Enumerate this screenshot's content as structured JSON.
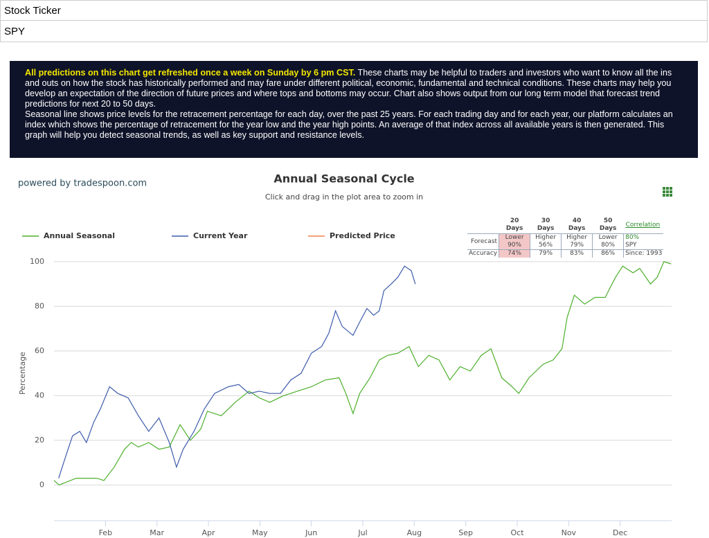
{
  "form": {
    "ticker_label": "Stock Ticker",
    "ticker_value": "SPY"
  },
  "banner": {
    "highlight": "All predictions on this chart get refreshed once a week on Sunday by 6 pm CST.",
    "text": " These charts may be helpful to traders and investors who want to know all the ins and outs on how the stock has historically performed and may fare under different political, economic, fundamental and technical conditions. These charts may help you develop an expectation of the direction of future prices and where tops and bottoms may occur. Chart also shows output from our long term model that forecast trend predictions for next 20 to 50 days.",
    "text2": "Seasonal line shows price levels for the retracement percentage for each day, over the past 25 years. For each trading day and for each year, our platform calculates an index which shows the percentage of retracement for the year low and the year high points. An average of that index across all available years is then generated. This graph will help you detect seasonal trends, as well as key support and resistance levels."
  },
  "powered_by": "powered by tradespoon.com",
  "forecast_table": {
    "headers": [
      "20 Days",
      "30 Days",
      "40 Days",
      "50 Days"
    ],
    "forecast_label": "Forecast",
    "forecast": [
      {
        "direction": "Lower",
        "percent": "90%"
      },
      {
        "direction": "Higher",
        "percent": "56%"
      },
      {
        "direction": "Higher",
        "percent": "79%"
      },
      {
        "direction": "Lower",
        "percent": "80%"
      }
    ],
    "accuracy_label": "Accuracy",
    "accuracy": [
      "74%",
      "79%",
      "83%",
      "86%"
    ],
    "correlation_label": "Correlation",
    "correlation": "80%",
    "symbol": "SPY",
    "since": "Since: 1993"
  },
  "chart_data": {
    "type": "line",
    "title": "Annual Seasonal Cycle",
    "subtitle": "Click and drag in the plot area to zoom in",
    "y_label": "Percentage",
    "xlim": [
      0,
      12
    ],
    "xticks": [
      {
        "value": 1,
        "label": "Feb"
      },
      {
        "value": 2,
        "label": "Mar"
      },
      {
        "value": 3,
        "label": "Apr"
      },
      {
        "value": 4,
        "label": "May"
      },
      {
        "value": 5,
        "label": "Jun"
      },
      {
        "value": 6,
        "label": "Jul"
      },
      {
        "value": 7,
        "label": "Aug"
      },
      {
        "value": 8,
        "label": "Sep"
      },
      {
        "value": 9,
        "label": "Oct"
      },
      {
        "value": 10,
        "label": "Nov"
      },
      {
        "value": 11,
        "label": "Dec"
      }
    ],
    "ylim": [
      -16,
      104
    ],
    "yticks": [
      0,
      20,
      40,
      60,
      80,
      100
    ],
    "grid": true,
    "series": [
      {
        "name": "Annual Seasonal",
        "color": "#4caf2a",
        "x": [
          0,
          0.1,
          0.43,
          0.83,
          0.97,
          1.17,
          1.37,
          1.5,
          1.64,
          1.84,
          2.04,
          2.24,
          2.45,
          2.65,
          2.85,
          2.98,
          3.25,
          3.52,
          3.79,
          3.99,
          4.19,
          4.46,
          4.73,
          5.0,
          5.27,
          5.54,
          5.67,
          5.81,
          5.94,
          6.14,
          6.32,
          6.48,
          6.68,
          6.9,
          7.08,
          7.28,
          7.48,
          7.69,
          7.89,
          8.09,
          8.3,
          8.49,
          8.7,
          8.9,
          9.03,
          9.23,
          9.5,
          9.7,
          9.87,
          9.97,
          10.11,
          10.31,
          10.51,
          10.71,
          10.91,
          11.05,
          11.25,
          11.38,
          11.59,
          11.72,
          11.85,
          11.99
        ],
        "values": [
          2,
          0,
          3,
          3,
          2,
          8,
          16,
          19,
          17,
          19,
          16,
          17,
          27,
          20,
          25,
          33,
          31,
          37,
          42,
          39,
          37,
          40,
          42,
          44,
          47,
          48,
          41,
          32,
          41,
          48,
          56,
          58,
          59,
          62,
          53,
          58,
          56,
          47,
          53,
          51,
          58,
          61,
          48,
          44,
          41,
          48,
          54,
          56,
          61,
          75,
          85,
          81,
          84,
          84,
          93,
          98,
          95,
          97,
          90,
          93,
          100,
          99
        ]
      },
      {
        "name": "Current Year",
        "color": "#3c5bab",
        "x": [
          0.09,
          0.23,
          0.36,
          0.5,
          0.63,
          0.77,
          0.9,
          1.08,
          1.24,
          1.44,
          1.64,
          1.84,
          2.04,
          2.24,
          2.38,
          2.51,
          2.72,
          2.92,
          3.12,
          3.39,
          3.59,
          3.79,
          3.99,
          4.19,
          4.4,
          4.6,
          4.8,
          5.0,
          5.2,
          5.34,
          5.47,
          5.6,
          5.81,
          5.94,
          6.08,
          6.21,
          6.32,
          6.41,
          6.55,
          6.68,
          6.81,
          6.94,
          7.02
        ],
        "values": [
          3,
          13,
          22,
          24,
          19,
          28,
          34,
          44,
          41,
          39,
          31,
          24,
          30,
          19,
          8,
          16,
          24,
          34,
          41,
          44,
          45,
          41,
          42,
          41,
          41,
          47,
          50,
          59,
          62,
          68,
          78,
          71,
          67,
          73,
          79,
          76,
          78,
          87,
          90,
          93,
          98,
          96,
          90
        ]
      },
      {
        "name": "Predicted Price",
        "color": "#f0824a",
        "x": [],
        "values": []
      }
    ]
  }
}
